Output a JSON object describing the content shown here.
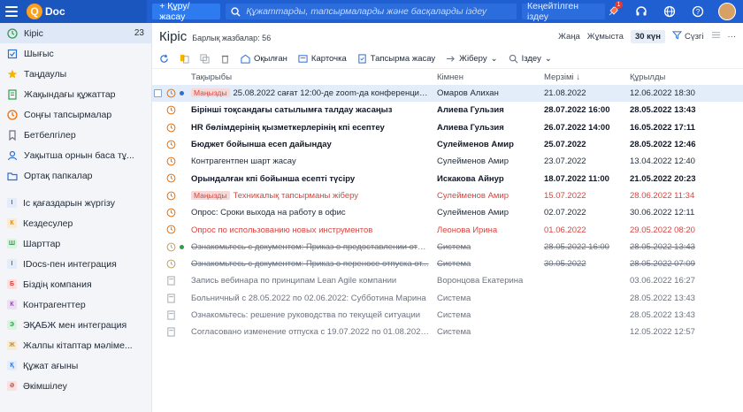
{
  "app": {
    "logo_letter": "Q",
    "logo_text": "Doc"
  },
  "topbar": {
    "create_label": "+ Құру/жасау",
    "search_placeholder": "Құжаттарды, тапсырмаларды және басқаларды іздеу",
    "advanced_label": "Кеңейтілген іздеу",
    "notif_count": "1"
  },
  "sidebar": {
    "items": [
      {
        "label": "Кіріс",
        "count": "23",
        "icon": "inbox-icon",
        "active": true
      },
      {
        "label": "Шығыс",
        "icon": "outbox-icon"
      },
      {
        "label": "Таңдаулы",
        "icon": "star-icon"
      },
      {
        "label": "Жақындағы құжаттар",
        "icon": "recent-docs-icon"
      },
      {
        "label": "Соңғы тапсырмалар",
        "icon": "recent-tasks-icon"
      },
      {
        "label": "Бетбелгілер",
        "icon": "bookmark-icon"
      },
      {
        "label": "Уақытша орнын баса тұ...",
        "icon": "substitute-icon"
      },
      {
        "label": "Ортақ папкалар",
        "icon": "shared-folder-icon"
      }
    ],
    "sections": [
      {
        "label": "Іс қағаздарын жүргізу",
        "letter": "І",
        "bg": "#e3ecf8",
        "fg": "#2f6fd1"
      },
      {
        "label": "Кездесулер",
        "letter": "К",
        "bg": "#fbecd1",
        "fg": "#d98a0c"
      },
      {
        "label": "Шарттар",
        "letter": "Ш",
        "bg": "#dff1e3",
        "fg": "#2f9d4b"
      },
      {
        "label": "IDocs-пен интеграция",
        "letter": "I",
        "bg": "#e3ecf8",
        "fg": "#2f6fd1"
      },
      {
        "label": "Біздің компания",
        "letter": "Б",
        "bg": "#fbe0df",
        "fg": "#d9443f"
      },
      {
        "label": "Контрагенттер",
        "letter": "К",
        "bg": "#ecdff5",
        "fg": "#8e44ad"
      },
      {
        "label": "ЭҚАБЖ мен интеграция",
        "letter": "Э",
        "bg": "#dff1e3",
        "fg": "#2f9d4b"
      },
      {
        "label": "Жалпы кітаптар мәліме...",
        "letter": "Ж",
        "bg": "#fbecd1",
        "fg": "#d98a0c"
      },
      {
        "label": "Құжат ағыны",
        "letter": "Қ",
        "bg": "#e3ecf8",
        "fg": "#2f6fd1"
      },
      {
        "label": "Әкімшілеу",
        "letter": "Ә",
        "bg": "#fbe0df",
        "fg": "#d9443f"
      }
    ]
  },
  "main": {
    "title": "Кіріс",
    "subtitle": "Барлық жазбалар: 56",
    "right": {
      "new": "Жаңа",
      "work": "Жұмыста",
      "days": "30 күн",
      "filter": "Сүзгі"
    },
    "toolbar": {
      "read": "Оқылған",
      "card": "Карточка",
      "task": "Тапсырма жасау",
      "send": "Жіберу",
      "search": "Іздеу"
    },
    "columns": {
      "subject": "Тақырыбы",
      "from": "Кімнен",
      "due": "Мерзімі ↓",
      "created": "Құрылды"
    },
    "rows": [
      {
        "subject": "25.08.2022 сағат 12:00-де zoom-да конференция ұйымда...",
        "tag": "Маңызды",
        "from": "Омаров Алихан",
        "due": "21.08.2022",
        "created": "12.06.2022 18:30",
        "style": "normal",
        "status": "clock",
        "selected": true,
        "dot": "#2f6fd1"
      },
      {
        "subject": "Бірінші тоқсандағы сатылымға талдау жасаңыз",
        "from": "Алиева Гульзия",
        "due": "28.07.2022 16:00",
        "created": "28.05.2022 13:43",
        "style": "bold",
        "status": "clock"
      },
      {
        "subject": "HR бөлімдерінің қызметкерлерінің кпі есептеу",
        "from": "Алиева Гульзия",
        "due": "26.07.2022 14:00",
        "created": "16.05.2022 17:11",
        "style": "bold",
        "status": "clock"
      },
      {
        "subject": "Бюджет бойынша есеп дайындау",
        "from": "Сулейменов Амир",
        "due": "25.07.2022",
        "created": "28.05.2022 12:46",
        "style": "bold",
        "status": "clock"
      },
      {
        "subject": "Контрагентпен шарт жасау",
        "from": "Сулейменов Амир",
        "due": "23.07.2022",
        "created": "13.04.2022 12:40",
        "style": "normal",
        "status": "clock"
      },
      {
        "subject": "Орындалған кпі бойынша есепті түсіру",
        "from": "Искакова Айнур",
        "due": "18.07.2022 11:00",
        "created": "21.05.2022 20:23",
        "style": "bold",
        "status": "clock"
      },
      {
        "subject": "Техникалық тапсырманы жіберу",
        "tag": "Маңызды",
        "from": "Сулейменов Амир",
        "due": "15.07.2022",
        "created": "28.06.2022 11:34",
        "style": "red",
        "status": "clock"
      },
      {
        "subject": "Опрос: Сроки выхода на работу в офис",
        "from": "Сулейменов Амир",
        "due": "02.07.2022",
        "created": "30.06.2022 12:11",
        "style": "normal",
        "status": "clock"
      },
      {
        "subject": "Опрос по использованию новых инструментов",
        "from": "Леонова Ирина",
        "due": "01.06.2022",
        "created": "29.05.2022 08:20",
        "style": "red",
        "status": "clock"
      },
      {
        "subject": "Ознакомьтесь с документом: Приказ о предоставлении отпуска",
        "from": "Система",
        "due": "28.05.2022 16:00",
        "created": "28.05.2022 13:43",
        "style": "strike",
        "status": "clock",
        "dot": "#2f9d4b"
      },
      {
        "subject": "Ознакомьтесь с документом: Приказ о переносе отпуска от...",
        "from": "Система",
        "due": "30.05.2022",
        "created": "28.05.2022 07:09",
        "style": "strike",
        "status": "clock"
      },
      {
        "subject": "Запись вебинара по принципам Lean Agile компании",
        "from": "Воронцова Екатерина",
        "due": "",
        "created": "03.06.2022 16:27",
        "style": "grey",
        "status": "doc"
      },
      {
        "subject": "Больничный с 28.05.2022 по 02.06.2022: Субботина Марина",
        "from": "Система",
        "due": "",
        "created": "28.05.2022 13:43",
        "style": "grey",
        "status": "doc"
      },
      {
        "subject": "Ознакомьтесь: решение руководства по текущей ситуации",
        "from": "Система",
        "due": "",
        "created": "28.05.2022 13:43",
        "style": "grey",
        "status": "doc"
      },
      {
        "subject": "Согласовано изменение отпуска с 19.07.2022 по 01.08.2022 (14 дн.)",
        "from": "Система",
        "due": "",
        "created": "12.05.2022 12:57",
        "style": "grey",
        "status": "doc"
      }
    ]
  }
}
